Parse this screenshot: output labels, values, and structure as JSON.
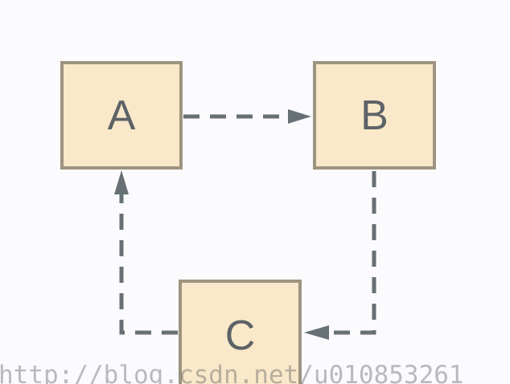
{
  "diagram": {
    "nodes": [
      {
        "id": "A",
        "label": "A"
      },
      {
        "id": "B",
        "label": "B"
      },
      {
        "id": "C",
        "label": "C"
      }
    ],
    "edges": [
      {
        "from": "A",
        "to": "B",
        "style": "dashed"
      },
      {
        "from": "B",
        "to": "C",
        "style": "dashed"
      },
      {
        "from": "C",
        "to": "A",
        "style": "dashed"
      }
    ],
    "colors": {
      "node_fill": "#f9e8c9",
      "node_border": "#9d9480",
      "edge": "#667075",
      "text": "#5d6266",
      "background": "#fbfafc"
    }
  },
  "watermark": {
    "text": "http://blog.csdn.net/u010853261"
  }
}
